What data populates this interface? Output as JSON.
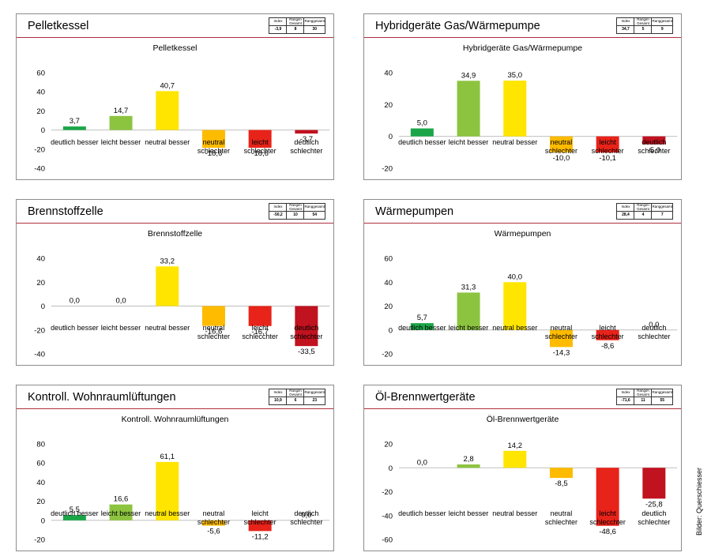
{
  "credit": "Bilder: Querschiesser",
  "stat_headers": [
    "Index",
    "Rangim Gesamt",
    "Ranggesamt"
  ],
  "colors": [
    "#1aa648",
    "#8cc43f",
    "#ffe500",
    "#ffbb00",
    "#e8231a",
    "#c1121f"
  ],
  "chart_data": [
    {
      "type": "bar",
      "panel_title": "Pelletkessel",
      "title": "Pelletkessel",
      "stats": [
        "-3,9",
        "8",
        "30"
      ],
      "categories": [
        "deutlich besser",
        "leicht besser",
        "neutral besser",
        "neutral schlechter",
        "leicht schlechter",
        "deutlich schlechter"
      ],
      "values": [
        3.7,
        14.7,
        40.7,
        -18.6,
        -18.6,
        -3.7
      ],
      "labels": [
        "3,7",
        "14,7",
        "40,7",
        "-18,6",
        "-18,6",
        "-3,7"
      ],
      "ylim": [
        -40,
        60
      ],
      "yticks": [
        -40,
        -20,
        0,
        20,
        40,
        60
      ]
    },
    {
      "type": "bar",
      "panel_title": "Hybridgeräte Gas/Wärmepumpe",
      "title": "Hybridgeräte Gas/Wärmepumpe",
      "stats": [
        "34,7",
        "5",
        "9"
      ],
      "categories": [
        "deutlich besser",
        "leicht besser",
        "neutral besser",
        "neutral schlechter",
        "leicht schlechter",
        "deutlich schlechter"
      ],
      "values": [
        5.0,
        34.9,
        35.0,
        -10.0,
        -10.1,
        -5.0
      ],
      "labels": [
        "5,0",
        "34,9",
        "35,0",
        "-10,0",
        "-10,1",
        "-5,0"
      ],
      "ylim": [
        -20,
        40
      ],
      "yticks": [
        -20,
        0,
        20,
        40
      ]
    },
    {
      "type": "bar",
      "panel_title": "Brennstoffzelle",
      "title": "Brennstoffzelle",
      "stats": [
        "-50,2",
        "10",
        "54"
      ],
      "categories": [
        "deutlich besser",
        "leicht besser",
        "neutral besser",
        "neutral schlechter",
        "leicht schlecchter",
        "deutlich schlechter"
      ],
      "values": [
        0.0,
        0.0,
        33.2,
        -16.6,
        -16.7,
        -33.5
      ],
      "labels": [
        "0,0",
        "0,0",
        "33,2",
        "-16,6",
        "-16,7",
        "-33,5"
      ],
      "ylim": [
        -40,
        40
      ],
      "yticks": [
        -40,
        -20,
        0,
        20,
        40
      ]
    },
    {
      "type": "bar",
      "panel_title": "Wärmepumpen",
      "title": "Wärmepumpen",
      "stats": [
        "28,4",
        "4",
        "7"
      ],
      "categories": [
        "deutlich besser",
        "leicht besser",
        "neutral besser",
        "neutral schlechter",
        "leicht schlechter",
        "deutlich schlechter"
      ],
      "values": [
        5.7,
        31.3,
        40.0,
        -14.3,
        -8.6,
        0.0
      ],
      "labels": [
        "5,7",
        "31,3",
        "40,0",
        "-14,3",
        "-8,6",
        "0,0"
      ],
      "ylim": [
        -20,
        60
      ],
      "yticks": [
        -20,
        0,
        20,
        40,
        60
      ]
    },
    {
      "type": "bar",
      "panel_title": "Kontroll. Wohnraumlüftungen",
      "title": "Kontroll. Wohnraumlüftungen",
      "stats": [
        "10,9",
        "6",
        "23"
      ],
      "categories": [
        "deutlich besser",
        "leicht besser",
        "neutral besser",
        "neutral schlechter",
        "leicht schlechter",
        "deutlich schlechter"
      ],
      "values": [
        5.5,
        16.6,
        61.1,
        -5.6,
        -11.2,
        0.0
      ],
      "labels": [
        "5,5",
        "16,6",
        "61,1",
        "-5,6",
        "-11,2",
        "0,0"
      ],
      "ylim": [
        -20,
        80
      ],
      "yticks": [
        -20,
        0,
        20,
        40,
        60,
        80
      ]
    },
    {
      "type": "bar",
      "panel_title": "Öl-Brennwertgeräte",
      "title": "Öl-Brennwertgeräte",
      "stats": [
        "-71,6",
        "11",
        "55"
      ],
      "categories": [
        "deutlich besser",
        "leicht besser",
        "neutral besser",
        "neutral schlechter",
        "leicht schlecchter",
        "deutlich schlechter"
      ],
      "values": [
        0.0,
        2.8,
        14.2,
        -8.5,
        -48.6,
        -25.8
      ],
      "labels": [
        "0,0",
        "2,8",
        "14,2",
        "-8,5",
        "-48,6",
        "-25,8"
      ],
      "ylim": [
        -60,
        20
      ],
      "yticks": [
        -60,
        -40,
        -20,
        0,
        20
      ]
    }
  ]
}
